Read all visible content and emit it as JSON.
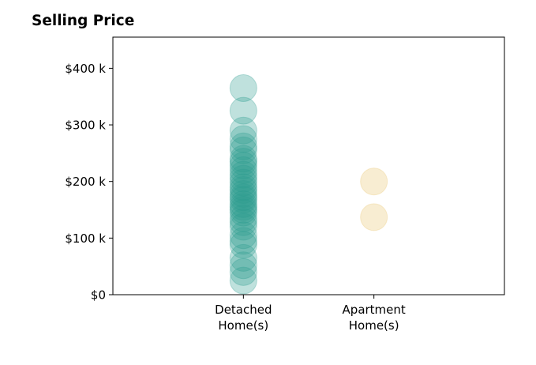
{
  "chart_data": {
    "type": "scatter",
    "title": "Selling Price",
    "xlabel": "",
    "ylabel": "",
    "categories": [
      "Detached\nHome(s)",
      "Apartment\nHome(s)"
    ],
    "yticks": [
      {
        "value": 0,
        "label": "$0"
      },
      {
        "value": 100000,
        "label": "$100 k"
      },
      {
        "value": 200000,
        "label": "$200 k"
      },
      {
        "value": 300000,
        "label": "$300 k"
      },
      {
        "value": 400000,
        "label": "$400 k"
      }
    ],
    "ylim": [
      0,
      455000
    ],
    "xlim": [
      0,
      3
    ],
    "grid": false,
    "series": [
      {
        "category_index": 0,
        "color": "#2a9d8f",
        "values": [
          25000,
          40000,
          52000,
          65000,
          88000,
          95000,
          105000,
          120000,
          128000,
          135000,
          145000,
          150000,
          155000,
          160000,
          168000,
          172000,
          178000,
          185000,
          190000,
          198000,
          205000,
          212000,
          220000,
          228000,
          235000,
          240000,
          255000,
          262000,
          275000,
          290000,
          325000,
          365000
        ]
      },
      {
        "category_index": 1,
        "color": "#e9c46a",
        "values": [
          137000,
          200000
        ]
      }
    ]
  }
}
